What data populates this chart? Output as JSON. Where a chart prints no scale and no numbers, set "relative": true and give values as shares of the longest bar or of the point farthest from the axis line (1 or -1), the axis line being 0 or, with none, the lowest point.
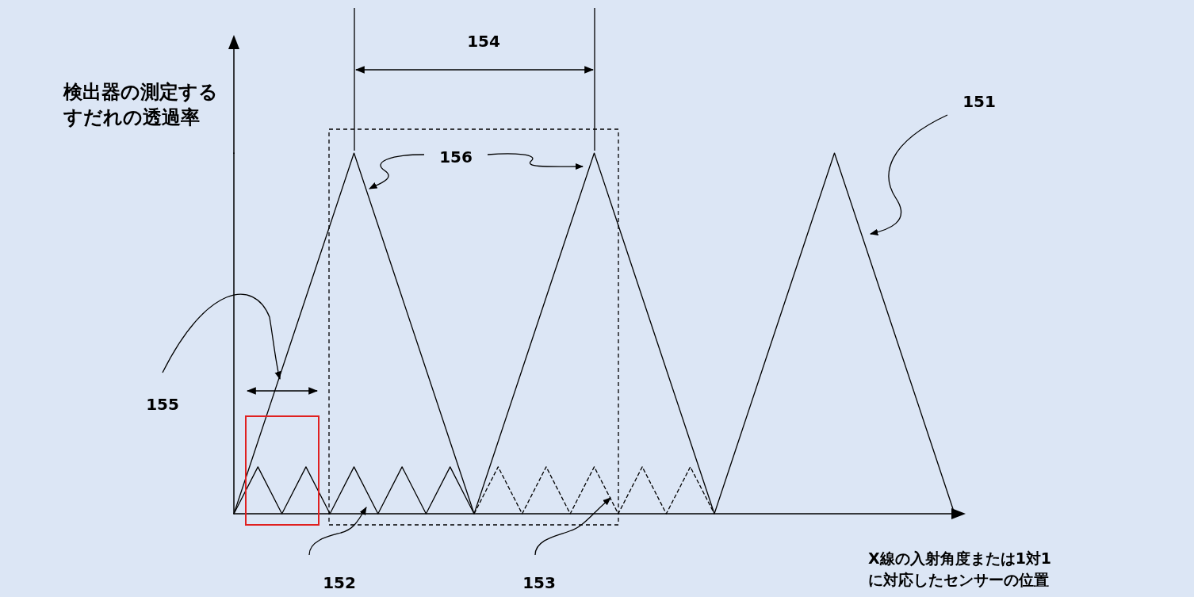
{
  "chart_data": {
    "type": "line",
    "relative": true,
    "xlabel": "X線の入射角度または1対1に対応したセンサーの位置",
    "ylabel": "検出器の測定するすだれの透過率",
    "categories": [
      null,
      null,
      null,
      null,
      null,
      null,
      null,
      null,
      null,
      null,
      null,
      null,
      null,
      null,
      null,
      null,
      null,
      null,
      null,
      null,
      null,
      null,
      null,
      null,
      null,
      null,
      null,
      null,
      null,
      null,
      null
    ],
    "series": [
      {
        "color": "#000000",
        "line_style": "solid",
        "values": [
          0,
          0.2,
          0.4,
          0.6,
          0.8,
          1,
          0.8,
          0.6,
          0.4,
          0.2,
          0,
          0.2,
          0.4,
          0.6,
          0.8,
          1,
          0.8,
          0.6,
          0.4,
          0.2,
          0,
          0.2,
          0.4,
          0.6,
          0.8,
          1,
          0.8,
          0.6,
          0.4,
          0.2,
          0
        ]
      },
      {
        "color": "#000000",
        "line_style": "solid",
        "values": [
          0,
          0.13,
          0,
          0.13,
          0,
          0.13,
          0,
          0.13,
          0,
          0.13,
          0,
          null,
          null,
          null,
          null,
          null,
          null,
          null,
          null,
          null,
          null,
          null,
          null,
          null,
          null,
          null,
          null,
          null,
          null,
          null,
          null
        ]
      },
      {
        "color": "#000000",
        "line_style": "dashed",
        "values": [
          null,
          null,
          null,
          null,
          null,
          null,
          null,
          null,
          null,
          null,
          0,
          0.13,
          0,
          0.13,
          0,
          0.13,
          0,
          0.13,
          0,
          0.13,
          0,
          null,
          null,
          null,
          null,
          null,
          null,
          null,
          null,
          null,
          null
        ]
      }
    ],
    "annotations": [
      "154",
      "151",
      "156",
      "155",
      "152",
      "153"
    ],
    "marker": "none"
  }
}
